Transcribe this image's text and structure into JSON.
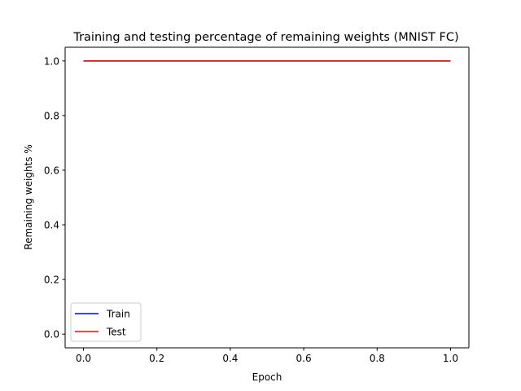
{
  "chart_data": {
    "type": "line",
    "title": "Training and testing percentage of remaining weights (MNIST FC)",
    "xlabel": "Epoch",
    "ylabel": "Remaining weights %",
    "xlim": [
      -0.05,
      1.05
    ],
    "ylim": [
      -0.05,
      1.05
    ],
    "xticks": [
      0.0,
      0.2,
      0.4,
      0.6,
      0.8,
      1.0
    ],
    "xtick_labels": [
      "0.0",
      "0.2",
      "0.4",
      "0.6",
      "0.8",
      "1.0"
    ],
    "yticks": [
      0.0,
      0.2,
      0.4,
      0.6,
      0.8,
      1.0
    ],
    "ytick_labels": [
      "0.0",
      "0.2",
      "0.4",
      "0.6",
      "0.8",
      "1.0"
    ],
    "grid": false,
    "legend_position": "lower-left",
    "x": [
      0,
      1
    ],
    "series": [
      {
        "name": "Train",
        "values": [
          1.0,
          1.0
        ],
        "color": "#0000ff"
      },
      {
        "name": "Test",
        "values": [
          1.0,
          1.0
        ],
        "color": "#ff0000"
      }
    ]
  }
}
